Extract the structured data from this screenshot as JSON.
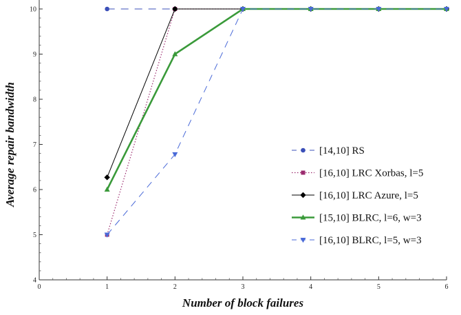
{
  "chart_data": {
    "type": "line",
    "xlabel": "Number of block failures",
    "ylabel": "Average repair bandwidth",
    "xlim": [
      0,
      6
    ],
    "ylim": [
      4,
      10
    ],
    "xticks": [
      "0",
      "1",
      "2",
      "3",
      "4",
      "5",
      "6"
    ],
    "yticks": [
      "4",
      "5",
      "6",
      "7",
      "8",
      "9",
      "10"
    ],
    "grid": false,
    "legend_position": "bottom-right",
    "series": [
      {
        "name": "[14,10] RS",
        "x": [
          1,
          2,
          3,
          4,
          5,
          6
        ],
        "values": [
          10,
          10,
          10,
          10,
          10,
          10
        ],
        "color": "#3b4fb8",
        "line_style": "long-dash",
        "marker": "circle"
      },
      {
        "name": "[16,10] LRC Xorbas, l=5",
        "x": [
          1,
          2,
          3,
          4,
          5,
          6
        ],
        "values": [
          5,
          10,
          10,
          10,
          10,
          10
        ],
        "color": "#9b2a6e",
        "line_style": "dotted",
        "marker": "square"
      },
      {
        "name": "[16,10] LRC Azure, l=5",
        "x": [
          1,
          2,
          3,
          4,
          5,
          6
        ],
        "values": [
          6.27,
          10,
          10,
          10,
          10,
          10
        ],
        "color": "#000000",
        "line_style": "solid",
        "marker": "diamond"
      },
      {
        "name": "[15,10] BLRC, l=6, w=3",
        "x": [
          1,
          2,
          3,
          4,
          5,
          6
        ],
        "values": [
          6,
          9,
          10,
          10,
          10,
          10
        ],
        "color": "#3a9a3a",
        "line_style": "solid-thick",
        "marker": "triangle-up"
      },
      {
        "name": "[16,10] BLRC, l=5, w=3",
        "x": [
          1,
          2,
          3,
          4,
          5,
          6
        ],
        "values": [
          5,
          6.78,
          10,
          10,
          10,
          10
        ],
        "color": "#4a6ad8",
        "line_style": "dashed",
        "marker": "triangle-down"
      }
    ]
  }
}
